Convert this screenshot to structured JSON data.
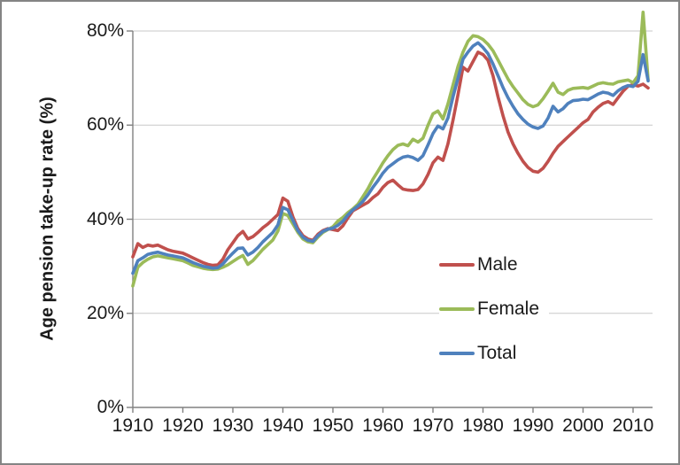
{
  "chart_data": {
    "type": "line",
    "title": "",
    "ylabel": "Age pension take-up rate (%)",
    "xlabel": "",
    "ylim": [
      0,
      80
    ],
    "xlim": [
      1910,
      2013
    ],
    "grid": true,
    "legend_position": "center-right-inside-plot",
    "y_ticks": {
      "values": [
        0,
        20,
        40,
        60,
        80
      ],
      "labels": [
        "0%",
        "20%",
        "40%",
        "60%",
        "80%"
      ]
    },
    "x_ticks": {
      "values": [
        1910,
        1920,
        1930,
        1940,
        1950,
        1960,
        1970,
        1980,
        1990,
        2000,
        2010
      ],
      "labels": [
        "1910",
        "1920",
        "1930",
        "1940",
        "1950",
        "1960",
        "1970",
        "1980",
        "1990",
        "2000",
        "2010"
      ]
    },
    "x": [
      1910,
      1911,
      1912,
      1913,
      1914,
      1915,
      1916,
      1917,
      1918,
      1919,
      1920,
      1921,
      1922,
      1923,
      1924,
      1925,
      1926,
      1927,
      1928,
      1929,
      1930,
      1931,
      1932,
      1933,
      1934,
      1935,
      1936,
      1937,
      1938,
      1939,
      1940,
      1941,
      1942,
      1943,
      1944,
      1945,
      1946,
      1947,
      1948,
      1949,
      1950,
      1951,
      1952,
      1953,
      1954,
      1955,
      1956,
      1957,
      1958,
      1959,
      1960,
      1961,
      1962,
      1963,
      1964,
      1965,
      1966,
      1967,
      1968,
      1969,
      1970,
      1971,
      1972,
      1973,
      1974,
      1975,
      1976,
      1977,
      1978,
      1979,
      1980,
      1981,
      1982,
      1983,
      1984,
      1985,
      1986,
      1987,
      1988,
      1989,
      1990,
      1991,
      1992,
      1993,
      1994,
      1995,
      1996,
      1997,
      1998,
      1999,
      2000,
      2001,
      2002,
      2003,
      2004,
      2005,
      2006,
      2007,
      2008,
      2009,
      2010,
      2011,
      2012,
      2013
    ],
    "series": [
      {
        "name": "Male",
        "color": "#C0504D",
        "values": [
          32.0,
          34.8,
          34.0,
          34.5,
          34.3,
          34.5,
          34.0,
          33.5,
          33.2,
          33.0,
          32.8,
          32.3,
          31.8,
          31.3,
          30.8,
          30.4,
          30.2,
          30.3,
          31.5,
          33.5,
          35.0,
          36.5,
          37.4,
          35.8,
          36.3,
          37.2,
          38.2,
          39.0,
          40.0,
          41.0,
          44.5,
          43.8,
          40.5,
          38.0,
          36.5,
          35.8,
          35.5,
          36.8,
          37.6,
          38.0,
          37.8,
          37.6,
          38.6,
          40.3,
          41.8,
          42.4,
          43.0,
          43.6,
          44.6,
          45.4,
          46.8,
          47.8,
          48.3,
          47.3,
          46.4,
          46.2,
          46.1,
          46.3,
          47.5,
          49.5,
          52.0,
          53.2,
          52.5,
          56.0,
          61.0,
          66.5,
          72.3,
          71.5,
          73.5,
          75.5,
          75.0,
          73.8,
          70.5,
          66.0,
          62.0,
          58.5,
          56.0,
          54.0,
          52.3,
          51.0,
          50.2,
          50.0,
          50.8,
          52.3,
          54.0,
          55.5,
          56.5,
          57.5,
          58.5,
          59.5,
          60.5,
          61.2,
          62.8,
          63.8,
          64.6,
          65.0,
          64.4,
          65.8,
          67.2,
          68.3,
          68.6,
          68.3,
          68.7,
          67.9
        ]
      },
      {
        "name": "Female",
        "color": "#9BBB59",
        "values": [
          25.8,
          29.8,
          30.8,
          31.5,
          32.0,
          32.2,
          32.0,
          31.8,
          31.6,
          31.4,
          31.2,
          30.7,
          30.2,
          29.9,
          29.6,
          29.4,
          29.3,
          29.4,
          29.8,
          30.3,
          31.0,
          31.7,
          32.3,
          30.4,
          31.2,
          32.4,
          33.6,
          34.6,
          35.6,
          37.5,
          41.2,
          40.8,
          39.0,
          37.2,
          35.8,
          35.2,
          35.0,
          36.2,
          37.2,
          37.8,
          38.4,
          39.6,
          40.4,
          41.4,
          42.2,
          43.2,
          44.8,
          46.5,
          48.5,
          50.2,
          52.0,
          53.5,
          54.8,
          55.7,
          56.0,
          55.6,
          57.0,
          56.4,
          57.2,
          60.0,
          62.4,
          63.0,
          61.3,
          64.5,
          68.5,
          72.5,
          75.5,
          77.8,
          79.0,
          78.8,
          78.2,
          77.2,
          75.8,
          73.8,
          71.8,
          69.8,
          68.2,
          66.8,
          65.4,
          64.4,
          63.9,
          64.3,
          65.6,
          67.2,
          68.9,
          67.0,
          66.5,
          67.4,
          67.8,
          67.9,
          68.0,
          67.8,
          68.3,
          68.8,
          69.0,
          68.8,
          68.7,
          69.2,
          69.4,
          69.6,
          69.0,
          70.5,
          84.0,
          69.6
        ]
      },
      {
        "name": "Total",
        "color": "#4F81BD",
        "values": [
          28.5,
          31.2,
          31.8,
          32.5,
          32.8,
          33.0,
          32.7,
          32.4,
          32.2,
          32.0,
          31.8,
          31.3,
          30.8,
          30.4,
          30.0,
          29.8,
          29.6,
          29.7,
          30.5,
          31.7,
          32.8,
          33.8,
          33.9,
          32.4,
          33.0,
          34.0,
          35.2,
          36.2,
          37.2,
          38.8,
          42.5,
          42.0,
          39.8,
          37.6,
          36.2,
          35.5,
          35.3,
          36.5,
          37.4,
          37.9,
          38.1,
          38.7,
          39.6,
          40.9,
          42.0,
          42.8,
          43.8,
          45.2,
          46.8,
          48.2,
          49.8,
          51.0,
          51.8,
          52.6,
          53.2,
          53.4,
          53.1,
          52.5,
          53.5,
          55.8,
          58.2,
          59.8,
          59.2,
          61.5,
          66.0,
          70.0,
          74.0,
          75.5,
          76.8,
          77.5,
          76.5,
          75.2,
          73.0,
          70.5,
          68.0,
          65.8,
          64.0,
          62.4,
          61.2,
          60.2,
          59.6,
          59.3,
          59.8,
          61.5,
          64.0,
          62.8,
          63.5,
          64.6,
          65.2,
          65.3,
          65.5,
          65.4,
          66.0,
          66.6,
          67.0,
          66.8,
          66.3,
          67.3,
          68.0,
          68.4,
          68.2,
          69.3,
          75.0,
          69.4
        ]
      }
    ]
  },
  "legend": {
    "items": [
      {
        "label": "Male",
        "color": "#C0504D"
      },
      {
        "label": "Female",
        "color": "#9BBB59"
      },
      {
        "label": "Total",
        "color": "#4F81BD"
      }
    ]
  },
  "colors": {
    "male": "#C0504D",
    "female": "#9BBB59",
    "total": "#4F81BD",
    "gridline": "#C8C8C8",
    "axis": "#808080",
    "text": "#1A1A1A",
    "background": "#FFFFFF",
    "border": "#848484"
  }
}
